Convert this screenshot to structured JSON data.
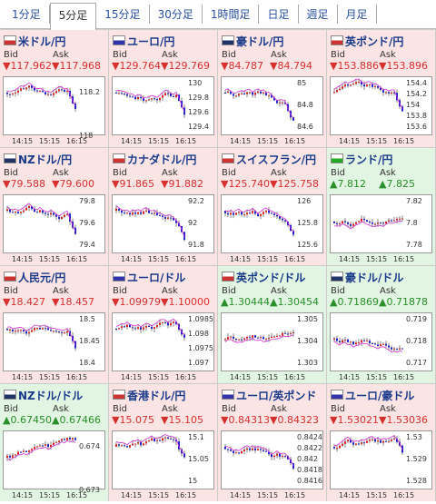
{
  "tabs": [
    "1分足",
    "5分足",
    "15分足",
    "30分足",
    "1時間足",
    "日足",
    "週足",
    "月足"
  ],
  "panels": [
    {
      "name": "米ドル/円",
      "bid_label": "Bid",
      "ask_label": "Ask",
      "bid": "▼117.962",
      "ask": "▼117.968",
      "y_labels": [
        "118.2",
        "118"
      ],
      "x_labels": [
        "14:15",
        "15:15",
        "16:15"
      ]
    },
    {
      "name": "ユーロ/円",
      "bid_label": "Bid",
      "ask_label": "Ask",
      "bid": "▼129.764",
      "ask": "▼129.769",
      "y_labels": [
        "130",
        "129.8",
        "129.6",
        "129.4"
      ],
      "x_labels": [
        "14:15",
        "15:15",
        "16:15"
      ]
    },
    {
      "name": "豪ドル/円",
      "bid_label": "Bid",
      "ask_label": "Ask",
      "bid": "▼84.787",
      "ask": "▼84.794",
      "y_labels": [
        "85",
        "84.8",
        "84.6"
      ],
      "x_labels": [
        "14:15",
        "15:15",
        "16:15"
      ]
    },
    {
      "name": "英ポンド/円",
      "bid_label": "Bid",
      "ask_label": "Ask",
      "bid": "▼153.886",
      "ask": "▼153.896",
      "y_labels": [
        "154.4",
        "154.2",
        "154",
        "153.8",
        "153.6"
      ],
      "x_labels": [
        "14:15",
        "15:15",
        "16:15"
      ]
    },
    {
      "name": "NZドル/円",
      "bid_label": "Bid",
      "ask_label": "Ask",
      "bid": "▼79.588",
      "ask": "▼79.600",
      "y_labels": [
        "79.8",
        "79.6",
        "79.4"
      ],
      "x_labels": [
        "14:15",
        "15:15",
        "16:15"
      ]
    },
    {
      "name": "カナダドル/円",
      "bid_label": "Bid",
      "ask_label": "Ask",
      "bid": "▼91.865",
      "ask": "▼91.882",
      "y_labels": [
        "92.2",
        "92",
        "91.8"
      ],
      "x_labels": [
        "14:15",
        "15:15",
        "16:15"
      ]
    },
    {
      "name": "スイスフラン/円",
      "bid_label": "Bid",
      "ask_label": "Ask",
      "bid": "▼125.740",
      "ask": "▼125.758",
      "y_labels": [
        "126",
        "125.8",
        "125.6"
      ],
      "x_labels": [
        "14:15",
        "15:15",
        "16:15"
      ]
    },
    {
      "name": "ランド/円",
      "bid_label": "Bid",
      "ask_label": "Ask",
      "bid": "▲7.812",
      "ask": "▲7.825",
      "y_labels": [
        "7.82",
        "7.8",
        "7.78"
      ],
      "x_labels": [
        "14:15",
        "15:15",
        "16:15"
      ]
    },
    {
      "name": "人民元/円",
      "bid_label": "Bid",
      "ask_label": "Ask",
      "bid": "▼18.427",
      "ask": "▼18.457",
      "y_labels": [
        "18.5",
        "18.45",
        "18.4"
      ],
      "x_labels": [
        "14:15",
        "15:15",
        "16:15"
      ]
    },
    {
      "name": "ユーロ/ドル",
      "bid_label": "Bid",
      "ask_label": "Ask",
      "bid": "▼1.09979",
      "ask": "▼1.10000",
      "y_labels": [
        "1.0985",
        "1.098",
        "1.0975",
        "1.097"
      ],
      "x_labels": [
        "14:15",
        "15:15",
        "16:15"
      ]
    },
    {
      "name": "英ポンド/ドル",
      "bid_label": "Bid",
      "ask_label": "Ask",
      "bid": "▲1.30444",
      "ask": "▲1.30454",
      "y_labels": [
        "1.305",
        "1.304",
        "1.303"
      ],
      "x_labels": [
        "14:15",
        "15:15",
        "16:15"
      ]
    },
    {
      "name": "豪ドル/ドル",
      "bid_label": "Bid",
      "ask_label": "Ask",
      "bid": "▲0.71869",
      "ask": "▲0.71878",
      "y_labels": [
        "0.719",
        "0.718",
        "0.717"
      ],
      "x_labels": [
        "14:15",
        "15:15",
        "16:15"
      ]
    },
    {
      "name": "NZドル/ドル",
      "bid_label": "Bid",
      "ask_label": "Ask",
      "bid": "▲0.67450",
      "ask": "▲0.67466",
      "y_labels": [
        "0.674",
        "0.673"
      ],
      "x_labels": [
        "14:15",
        "15:15",
        "16:15"
      ]
    },
    {
      "name": "香港ドル/円",
      "bid_label": "Bid",
      "ask_label": "Ask",
      "bid": "▼15.075",
      "ask": "▼15.105",
      "y_labels": [
        "15.1",
        "15.05",
        "15"
      ],
      "x_labels": [
        "14:15",
        "15:15",
        "16:15"
      ]
    },
    {
      "name": "ユーロ/英ポンド",
      "bid_label": "Bid",
      "ask_label": "Ask",
      "bid": "▼0.84313",
      "ask": "▼0.84323",
      "y_labels": [
        "0.8424",
        "0.8422",
        "0.842",
        "0.8418",
        "0.8416"
      ],
      "x_labels": [
        "14:15",
        "15:15",
        "16:15"
      ]
    },
    {
      "name": "ユーロ/豪ドル",
      "bid_label": "Bid",
      "ask_label": "Ask",
      "bid": "▼1.53021",
      "ask": "▼1.53036",
      "y_labels": [
        "1.53",
        "1.529",
        "1.528"
      ],
      "x_labels": [
        "14:15",
        "15:15",
        "16:15"
      ]
    }
  ]
}
